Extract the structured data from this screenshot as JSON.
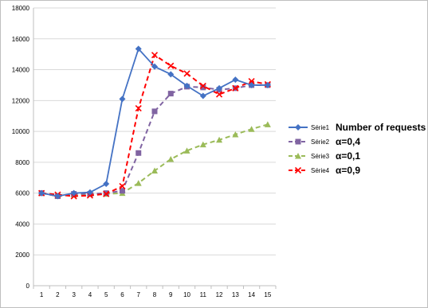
{
  "chart_data": {
    "type": "line",
    "title": "",
    "xlabel": "",
    "ylabel": "",
    "x": [
      1,
      2,
      3,
      4,
      5,
      6,
      7,
      8,
      9,
      10,
      11,
      12,
      13,
      14,
      15
    ],
    "ylim": [
      0,
      18000
    ],
    "yticks": [
      0,
      2000,
      4000,
      6000,
      8000,
      10000,
      12000,
      14000,
      16000,
      18000
    ],
    "grid": "horizontal",
    "legend_position": "right",
    "series": [
      {
        "name": "Série1",
        "note": "Number of requests",
        "color": "#4472c4",
        "dash": "solid",
        "marker": "diamond",
        "values": [
          6000,
          5800,
          6000,
          6050,
          6600,
          12100,
          15350,
          14200,
          13700,
          12950,
          12300,
          12800,
          13350,
          13000,
          13000
        ]
      },
      {
        "name": "Série2",
        "note": "α=0,4",
        "color": "#8064a2",
        "dash": "dashed",
        "marker": "square",
        "values": [
          6000,
          5800,
          5950,
          5950,
          6000,
          6150,
          8600,
          11300,
          12450,
          12900,
          12850,
          12700,
          12800,
          13000,
          13000
        ]
      },
      {
        "name": "Série3",
        "note": "α=0,1",
        "color": "#9bbb59",
        "dash": "dashed",
        "marker": "triangle",
        "values": [
          6000,
          5800,
          5900,
          5950,
          5950,
          6000,
          6650,
          7450,
          8200,
          8750,
          9150,
          9450,
          9800,
          10150,
          10450
        ]
      },
      {
        "name": "Série4",
        "note": "α=0,9",
        "color": "#ff0000",
        "dash": "dashed",
        "marker": "x",
        "values": [
          6000,
          5900,
          5800,
          5850,
          5950,
          6450,
          11500,
          14950,
          14250,
          13750,
          12950,
          12400,
          12800,
          13250,
          13050
        ]
      }
    ]
  }
}
